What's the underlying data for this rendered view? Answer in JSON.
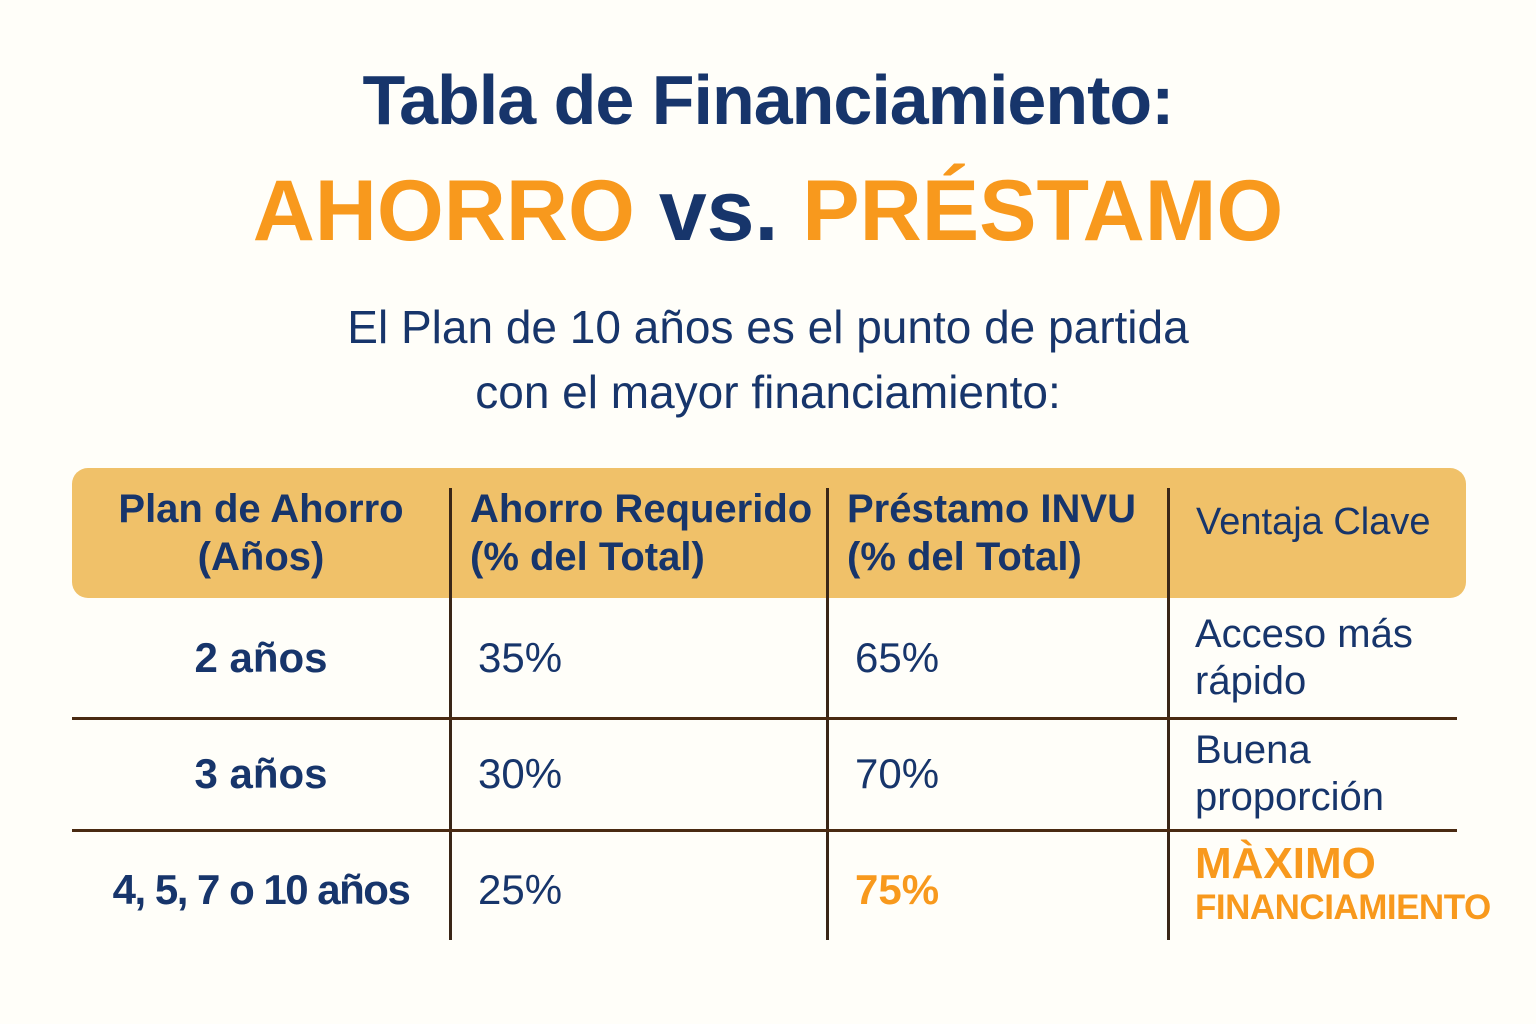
{
  "colors": {
    "background": "#FFFEF9",
    "navy": "#17356B",
    "orange": "#F8991D",
    "table_header_bg": "#F0C169",
    "grid_line_brown": "#4A2A12"
  },
  "header": {
    "title": "Tabla de Financiamiento:",
    "vs_left": "AHORRO",
    "vs_mid": "vs.",
    "vs_right": "PRÉSTAMO",
    "subtitle_line1": "El Plan de 10 años es el punto de partida",
    "subtitle_line2": "con el mayor financiamiento:"
  },
  "table": {
    "headers": [
      {
        "line1": "Plan de Ahorro",
        "line2": "(Años)"
      },
      {
        "line1": "Ahorro Requerido",
        "line2": "(% del Total)"
      },
      {
        "line1": "Préstamo INVU",
        "line2": "(% del Total)"
      },
      {
        "line1": "Ventaja Clave",
        "line2": ""
      }
    ],
    "rows": [
      {
        "plan": "2 años",
        "ahorro": "35%",
        "prestamo": "65%",
        "ventaja": "Acceso más rápido"
      },
      {
        "plan": "3 años",
        "ahorro": "30%",
        "prestamo": "70%",
        "ventaja": "Buena proporción"
      },
      {
        "plan": "4, 5, 7 o 10 años",
        "ahorro": "25%",
        "prestamo": "75%",
        "ventaja_line1": "MÀXIMO",
        "ventaja_line2": "FINANCIAMIENTO"
      }
    ]
  }
}
